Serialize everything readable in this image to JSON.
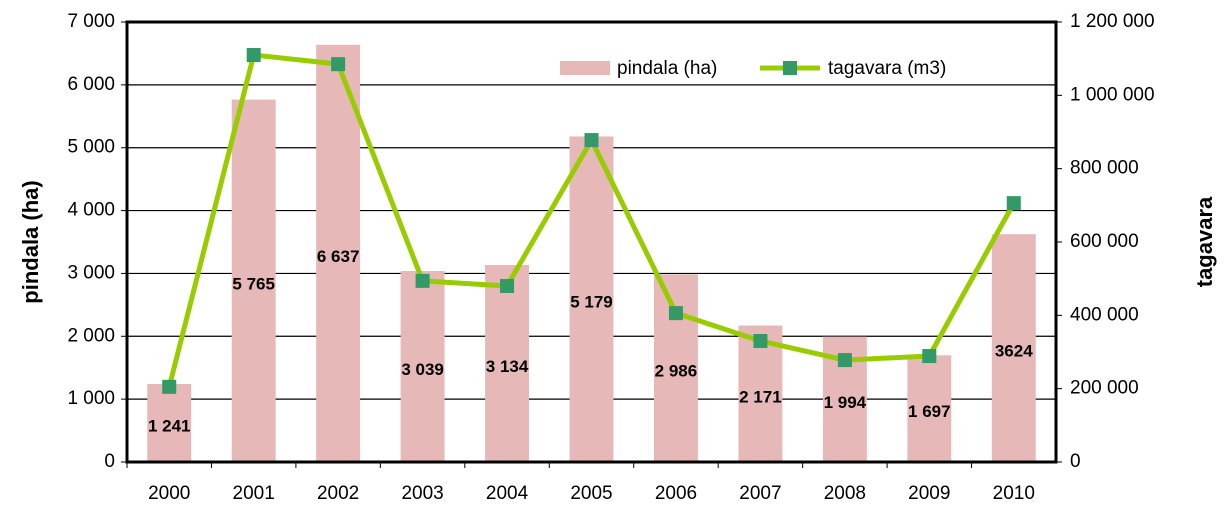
{
  "chart_data": {
    "type": "bar-line",
    "categories": [
      "2000",
      "2001",
      "2002",
      "2003",
      "2004",
      "2005",
      "2006",
      "2007",
      "2008",
      "2009",
      "2010"
    ],
    "series": [
      {
        "name": "pindala (ha)",
        "type": "bar",
        "color": "#e6b8b7",
        "axis": "y",
        "values": [
          1241,
          5765,
          6637,
          3039,
          3134,
          5179,
          2986,
          2171,
          1994,
          1697,
          3624
        ],
        "value_labels": [
          "1 241",
          "5 765",
          "6 637",
          "3 039",
          "3 134",
          "5 179",
          "2 986",
          "2 171",
          "1 994",
          "1 697",
          "3624"
        ]
      },
      {
        "name": "tagavara (m3)",
        "type": "line",
        "color": "#99cc00",
        "marker_color": "#339966",
        "axis": "y2",
        "values": [
          205000,
          1110000,
          1085000,
          494000,
          480000,
          878000,
          406000,
          330000,
          278000,
          289000,
          706000
        ]
      }
    ],
    "ylabel": "pindala (ha)",
    "y2label": "tagavara",
    "ylim": [
      0,
      7000
    ],
    "yticks": [
      0,
      {
        "value": 1000,
        "label": "1 000"
      },
      {
        "value": 2000,
        "label": "2 000"
      },
      {
        "value": 3000,
        "label": "3 000"
      },
      {
        "value": 4000,
        "label": "4 000"
      },
      {
        "value": 5000,
        "label": "5 000"
      },
      {
        "value": 6000,
        "label": "6 000"
      },
      {
        "value": 7000,
        "label": "7 000"
      }
    ],
    "y2lim": [
      0,
      1200000
    ],
    "y2ticks": [
      0,
      {
        "value": 200000,
        "label": "200 000"
      },
      {
        "value": 400000,
        "label": "400 000"
      },
      {
        "value": 600000,
        "label": "600 000"
      },
      {
        "value": 800000,
        "label": "800 000"
      },
      {
        "value": 1000000,
        "label": "1 000 000"
      },
      {
        "value": 1200000,
        "label": "1 200 000"
      }
    ],
    "grid": true,
    "legend": "top-right"
  }
}
